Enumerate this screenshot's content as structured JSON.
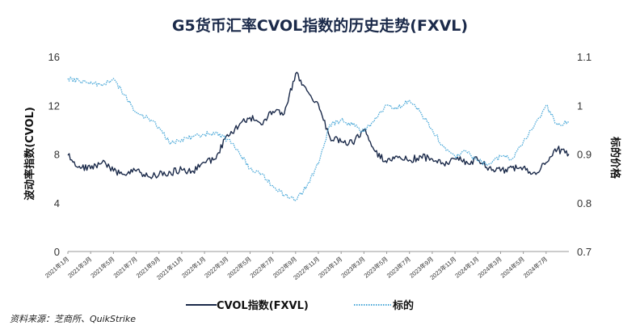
{
  "chart_data": {
    "type": "line",
    "title": "G5货币汇率CVOL指数的历史走势(FXVL)",
    "ylabel": "波动率指数(CVOL)",
    "y2label": "标的价格",
    "ylim": [
      0,
      16
    ],
    "yticks": [
      0,
      4,
      8,
      12,
      16
    ],
    "y2lim": [
      0.7,
      1.1
    ],
    "y2ticks": [
      "0.7",
      "0.8",
      "0.9",
      "1",
      "1.1"
    ],
    "x_range": [
      "2021-01",
      "2024-09"
    ],
    "xticks": [
      "2021年1月",
      "2021年3月",
      "2021年5月",
      "2021年7月",
      "2021年9月",
      "2021年11月",
      "2022年1月",
      "2022年3月",
      "2022年5月",
      "2022年7月",
      "2022年9月",
      "2022年11月",
      "2023年1月",
      "2023年3月",
      "2023年5月",
      "2023年7月",
      "2023年9月",
      "2023年11月",
      "2024年1月",
      "2024年3月",
      "2024年5月",
      "2024年7月"
    ],
    "grid": false,
    "legend_position": "bottom",
    "series": [
      {
        "name": "CVOL指数(FXVL)",
        "axis": "left",
        "color": "#1b2a4a",
        "style": "solid",
        "points": [
          [
            "2021-01",
            7.9
          ],
          [
            "2021-02",
            7.0
          ],
          [
            "2021-03",
            6.8
          ],
          [
            "2021-04",
            7.3
          ],
          [
            "2021-05",
            6.6
          ],
          [
            "2021-06",
            6.3
          ],
          [
            "2021-07",
            6.6
          ],
          [
            "2021-08",
            6.2
          ],
          [
            "2021-09",
            6.3
          ],
          [
            "2021-10",
            6.5
          ],
          [
            "2021-11",
            6.7
          ],
          [
            "2021-12",
            6.6
          ],
          [
            "2022-01",
            7.3
          ],
          [
            "2022-02",
            7.6
          ],
          [
            "2022-03",
            9.6
          ],
          [
            "2022-04",
            10.3
          ],
          [
            "2022-05",
            11.0
          ],
          [
            "2022-06",
            10.4
          ],
          [
            "2022-07",
            11.5
          ],
          [
            "2022-08",
            11.3
          ],
          [
            "2022-09",
            14.6
          ],
          [
            "2022-10",
            13.2
          ],
          [
            "2022-11",
            12.1
          ],
          [
            "2022-12",
            9.4
          ],
          [
            "2023-01",
            9.0
          ],
          [
            "2023-02",
            8.9
          ],
          [
            "2023-03",
            10.0
          ],
          [
            "2023-04",
            8.2
          ],
          [
            "2023-05",
            7.3
          ],
          [
            "2023-06",
            7.7
          ],
          [
            "2023-07",
            7.5
          ],
          [
            "2023-08",
            7.8
          ],
          [
            "2023-09",
            7.6
          ],
          [
            "2023-10",
            7.2
          ],
          [
            "2023-11",
            7.6
          ],
          [
            "2023-12",
            7.4
          ],
          [
            "2024-01",
            7.5
          ],
          [
            "2024-02",
            6.9
          ],
          [
            "2024-03",
            6.6
          ],
          [
            "2024-04",
            6.9
          ],
          [
            "2024-05",
            6.9
          ],
          [
            "2024-06",
            6.5
          ],
          [
            "2024-07",
            7.3
          ],
          [
            "2024-08",
            8.4
          ],
          [
            "2024-09",
            8.0
          ]
        ]
      },
      {
        "name": "标的",
        "axis": "right",
        "color": "#4aa8d8",
        "style": "dotted",
        "points": [
          [
            "2021-01",
            1.055
          ],
          [
            "2021-02",
            1.05
          ],
          [
            "2021-03",
            1.048
          ],
          [
            "2021-04",
            1.04
          ],
          [
            "2021-05",
            1.055
          ],
          [
            "2021-06",
            1.02
          ],
          [
            "2021-07",
            0.985
          ],
          [
            "2021-08",
            0.975
          ],
          [
            "2021-09",
            0.955
          ],
          [
            "2021-10",
            0.92
          ],
          [
            "2021-11",
            0.93
          ],
          [
            "2021-12",
            0.935
          ],
          [
            "2022-01",
            0.94
          ],
          [
            "2022-02",
            0.945
          ],
          [
            "2022-03",
            0.93
          ],
          [
            "2022-04",
            0.905
          ],
          [
            "2022-05",
            0.87
          ],
          [
            "2022-06",
            0.86
          ],
          [
            "2022-07",
            0.835
          ],
          [
            "2022-08",
            0.815
          ],
          [
            "2022-09",
            0.805
          ],
          [
            "2022-10",
            0.835
          ],
          [
            "2022-11",
            0.88
          ],
          [
            "2022-12",
            0.96
          ],
          [
            "2023-01",
            0.97
          ],
          [
            "2023-02",
            0.96
          ],
          [
            "2023-03",
            0.945
          ],
          [
            "2023-04",
            0.975
          ],
          [
            "2023-05",
            1.0
          ],
          [
            "2023-06",
            0.995
          ],
          [
            "2023-07",
            1.01
          ],
          [
            "2023-08",
            0.985
          ],
          [
            "2023-09",
            0.95
          ],
          [
            "2023-10",
            0.915
          ],
          [
            "2023-11",
            0.895
          ],
          [
            "2023-12",
            0.905
          ],
          [
            "2024-01",
            0.885
          ],
          [
            "2024-02",
            0.88
          ],
          [
            "2024-03",
            0.895
          ],
          [
            "2024-04",
            0.89
          ],
          [
            "2024-05",
            0.925
          ],
          [
            "2024-06",
            0.96
          ],
          [
            "2024-07",
            1.0
          ],
          [
            "2024-08",
            0.96
          ],
          [
            "2024-09",
            0.965
          ]
        ]
      }
    ]
  },
  "legend": {
    "cvol_label": "CVOL指数(FXVL)",
    "underlying_label": "标的"
  },
  "source": "资料来源：芝商所、QuikStrike"
}
